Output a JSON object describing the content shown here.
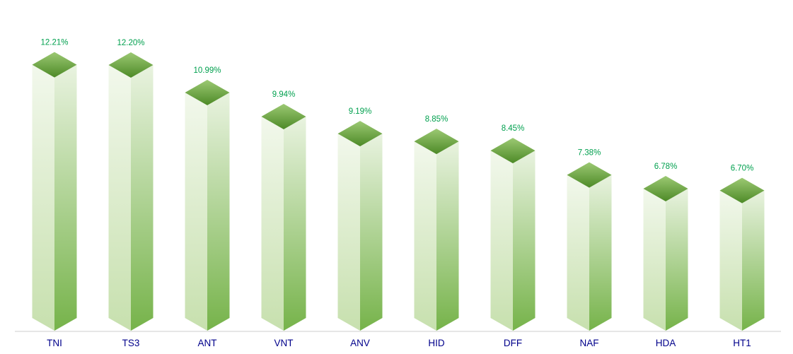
{
  "page": {
    "background": "#FFFFFF"
  },
  "chart_data": {
    "type": "bar",
    "style": "3d-column",
    "title": "",
    "xlabel": "",
    "ylabel": "",
    "categories": [
      "TNI",
      "TS3",
      "ANT",
      "VNT",
      "ANV",
      "HID",
      "DFF",
      "NAF",
      "HDA",
      "HT1"
    ],
    "values": [
      12.21,
      12.2,
      10.99,
      9.94,
      9.19,
      8.85,
      8.45,
      7.38,
      6.78,
      6.7
    ],
    "value_labels": [
      "12.21%",
      "12.20%",
      "10.99%",
      "9.94%",
      "9.19%",
      "8.85%",
      "8.45%",
      "7.38%",
      "6.78%",
      "6.70%"
    ],
    "unit": "%",
    "ylim": [
      0,
      13
    ],
    "grid": false,
    "legend": null,
    "sort_order": "descending",
    "colors": {
      "value_label": "#00A04E",
      "category_label": "#00008B",
      "axis_line": "#D8D8D8",
      "top_face_gradient": [
        "#9CC973",
        "#4D8A27"
      ],
      "left_face_gradient": [
        "#F2F8EC",
        "#C7E0AE"
      ],
      "right_face_gradient": [
        "#E9F3E0",
        "#76B34A"
      ],
      "background": "#FFFFFF"
    }
  }
}
